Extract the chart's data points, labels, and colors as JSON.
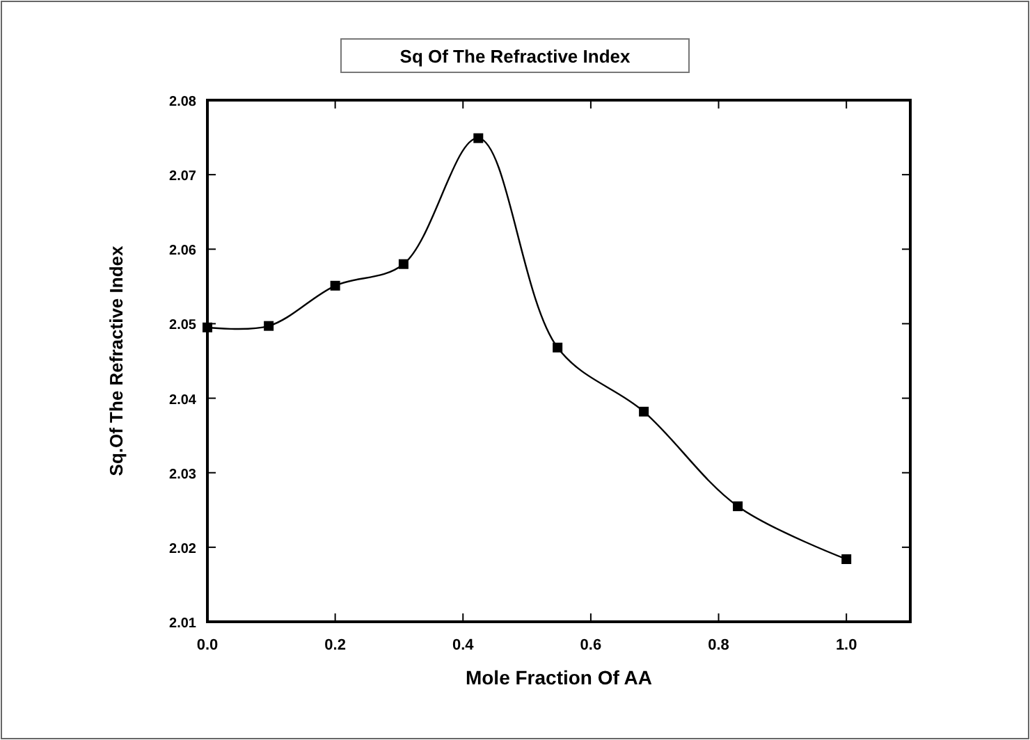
{
  "chart_data": {
    "type": "line",
    "title": "Sq Of The Refractive Index",
    "xlabel": "Mole Fraction Of AA",
    "ylabel": "Sq.Of The Refractive Index",
    "x": [
      0,
      0.096,
      0.2,
      0.307,
      0.424,
      0.548,
      0.683,
      0.83,
      1.0
    ],
    "series": [
      {
        "color": "#000000",
        "values": [
          2.0495,
          2.0497,
          2.0551,
          2.058,
          2.0749,
          2.0468,
          2.0382,
          2.0255,
          2.0184
        ]
      }
    ],
    "xlim": [
      0,
      1.1
    ],
    "xticks": [
      {
        "value": 0,
        "label": "0.0"
      },
      0.2,
      0.4,
      0.6,
      0.8,
      {
        "value": 1,
        "label": "1.0"
      }
    ],
    "ylim": [
      2.01,
      2.08
    ],
    "yticks": [
      2.01,
      2.02,
      2.03,
      2.04,
      2.05,
      2.06,
      2.07,
      2.08
    ],
    "marker": "square",
    "line_style": "solid"
  }
}
